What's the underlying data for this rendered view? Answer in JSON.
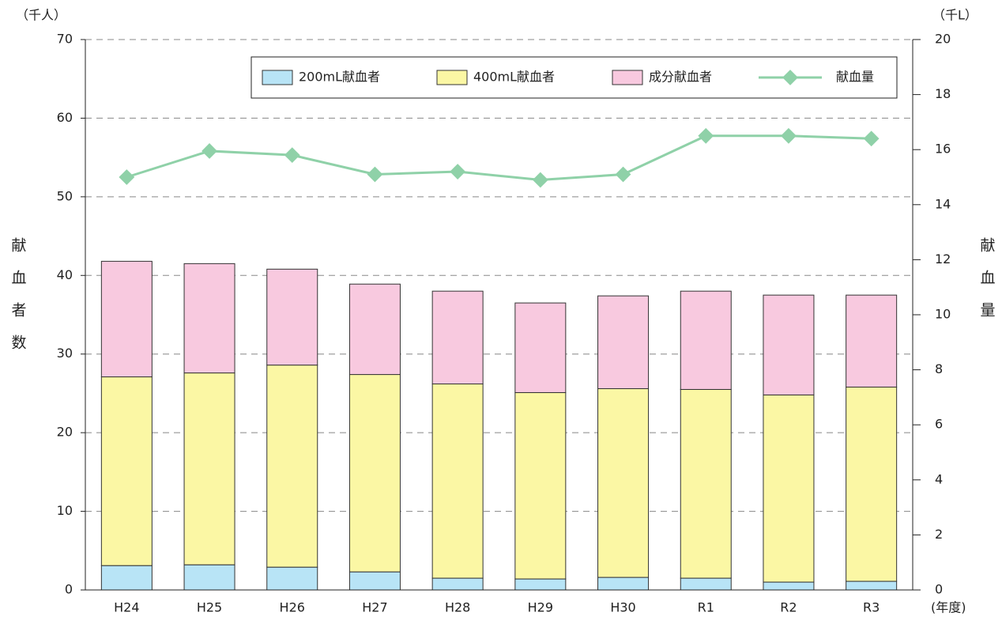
{
  "chart_data": {
    "type": "bar",
    "stacked": true,
    "y_unit": "（千人）",
    "y2_unit": "（千L）",
    "ylabel": "献血者数",
    "y2label": "献血量",
    "xlabel": "(年度)",
    "categories": [
      "H24",
      "H25",
      "H26",
      "H27",
      "H28",
      "H29",
      "H30",
      "R1",
      "R2",
      "R3"
    ],
    "series": [
      {
        "name": "200mL献血者",
        "color": "#b8e4f6",
        "values": [
          3.1,
          3.2,
          2.9,
          2.3,
          1.5,
          1.4,
          1.6,
          1.5,
          1.0,
          1.1
        ]
      },
      {
        "name": "400mL献血者",
        "color": "#fbf7a4",
        "values": [
          24.0,
          24.4,
          25.7,
          25.1,
          24.7,
          23.7,
          24.0,
          24.0,
          23.8,
          24.7
        ]
      },
      {
        "name": "成分献血者",
        "color": "#f8c9df",
        "values": [
          14.7,
          13.9,
          12.2,
          11.5,
          11.8,
          11.4,
          11.8,
          12.5,
          12.7,
          11.7
        ]
      },
      {
        "name": "献血量",
        "type": "line",
        "axis": "y2",
        "color": "#8fd1a8",
        "values": [
          15.0,
          15.95,
          15.8,
          15.1,
          15.2,
          14.9,
          15.1,
          16.5,
          16.5,
          16.4
        ]
      }
    ],
    "ylim": [
      0,
      70
    ],
    "yticks": [
      0,
      10,
      20,
      30,
      40,
      50,
      60,
      70
    ],
    "y2lim": [
      0,
      20
    ],
    "y2ticks": [
      0,
      2,
      4,
      6,
      8,
      10,
      12,
      14,
      16,
      18,
      20
    ],
    "grid": true
  }
}
